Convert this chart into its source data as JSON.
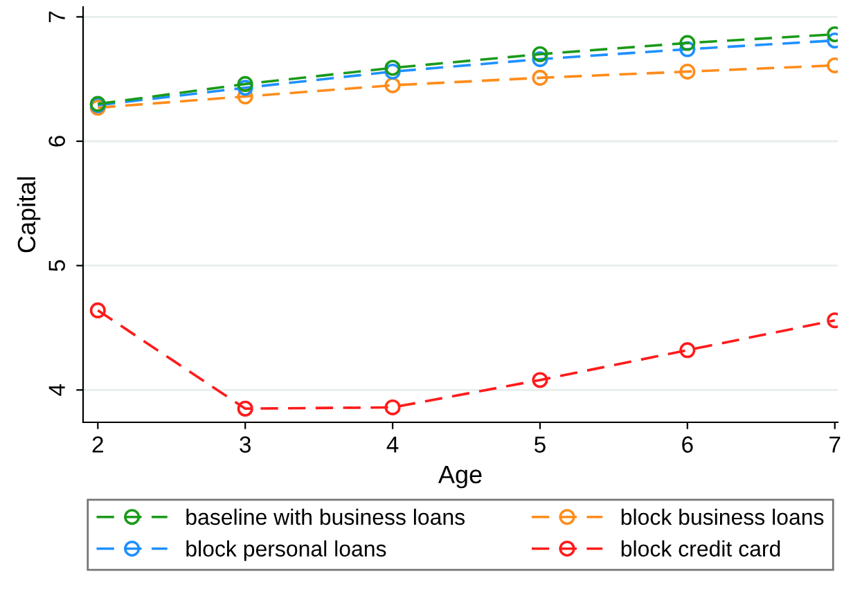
{
  "chart_data": {
    "type": "line",
    "xlabel": "Age",
    "ylabel": "Capital",
    "x": [
      2,
      3,
      4,
      5,
      6,
      7
    ],
    "series": [
      {
        "name": "baseline with business loans",
        "color": "#1a9a1a",
        "values": [
          6.3,
          6.46,
          6.59,
          6.7,
          6.79,
          6.86
        ]
      },
      {
        "name": "block personal loans",
        "color": "#1e90ff",
        "values": [
          6.29,
          6.43,
          6.56,
          6.66,
          6.74,
          6.81
        ]
      },
      {
        "name": "block business loans",
        "color": "#ff8c1a",
        "values": [
          6.27,
          6.36,
          6.45,
          6.51,
          6.56,
          6.61
        ]
      },
      {
        "name": "block credit card",
        "color": "#ff1a1a",
        "values": [
          4.64,
          3.85,
          3.86,
          4.08,
          4.32,
          4.56
        ]
      }
    ],
    "xlim": [
      1.9,
      7.02
    ],
    "ylim": [
      3.74,
      7.08
    ],
    "xticks": [
      2,
      3,
      4,
      5,
      6,
      7
    ],
    "yticks": [
      4,
      5,
      6,
      7
    ],
    "grid": "y",
    "legend": "bottom",
    "marker": "circle",
    "line_style": "dashed"
  }
}
